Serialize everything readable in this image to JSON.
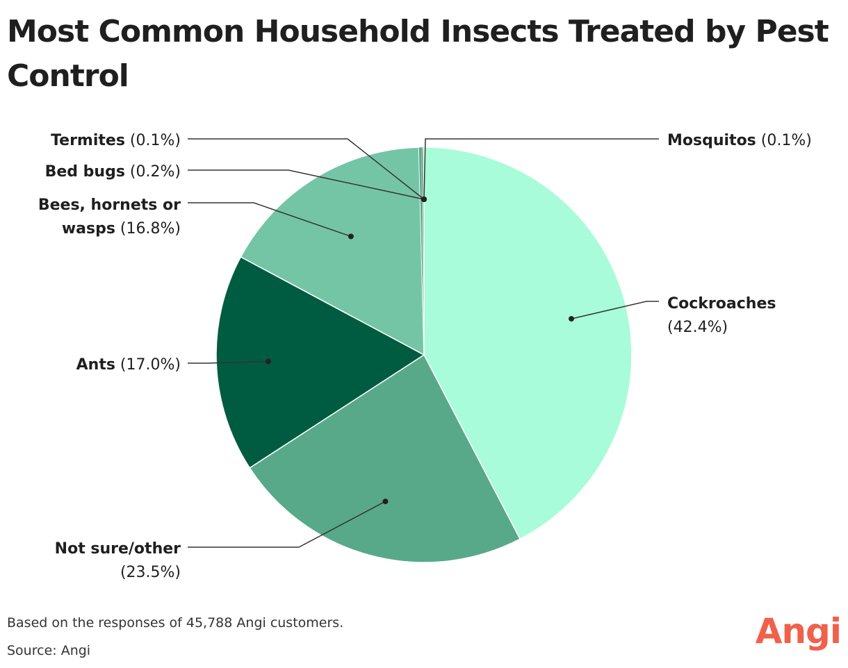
{
  "chart_data": {
    "type": "pie",
    "title": "Most Common Household Insects Treated by Pest Control",
    "slices": [
      {
        "name": "Cockroaches",
        "value": 42.4,
        "pct_label": "(42.4%)",
        "color": "#a8fcd9"
      },
      {
        "name": "Not sure/other",
        "value": 23.5,
        "pct_label": "(23.5%)",
        "color": "#58a98a"
      },
      {
        "name": "Ants",
        "value": 17.0,
        "pct_label": "(17.0%)",
        "color": "#005c40"
      },
      {
        "name": "Bees, hornets or wasps",
        "value": 16.8,
        "pct_label": "(16.8%)",
        "color": "#74c5a5"
      },
      {
        "name": "Bed bugs",
        "value": 0.2,
        "pct_label": "(0.2%)",
        "color": "#58a98a"
      },
      {
        "name": "Termites",
        "value": 0.1,
        "pct_label": "(0.1%)",
        "color": "#2e8a66"
      },
      {
        "name": "Mosquitos",
        "value": 0.1,
        "pct_label": "(0.1%)",
        "color": "#c9d9cf"
      }
    ],
    "legend": "callout labels"
  },
  "footnote": "Based on the responses of 45,788 Angi customers.",
  "source": "Source: Angi",
  "logo_text": "Angi"
}
